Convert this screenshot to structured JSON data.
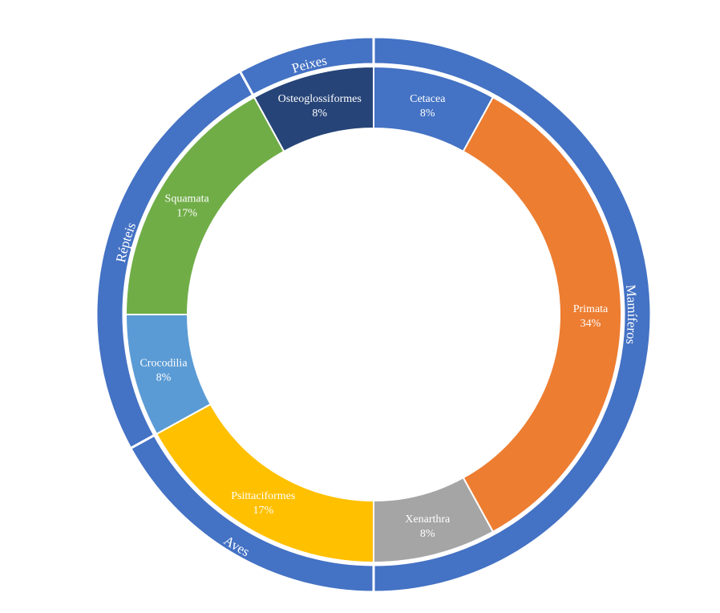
{
  "chart_data": {
    "type": "sunburst",
    "inner_ring": [
      {
        "name": "Cetacea",
        "value": 8,
        "label": "8%",
        "color": "#4472C4"
      },
      {
        "name": "Primata",
        "value": 34,
        "label": "34%",
        "color": "#ED7D31"
      },
      {
        "name": "Xenarthra",
        "value": 8,
        "label": "8%",
        "color": "#A5A5A5"
      },
      {
        "name": "Psittaciformes",
        "value": 17,
        "label": "17%",
        "color": "#FFC000"
      },
      {
        "name": "Crocodilia",
        "value": 8,
        "label": "8%",
        "color": "#5B9BD5"
      },
      {
        "name": "Squamata",
        "value": 17,
        "label": "17%",
        "color": "#70AD47"
      },
      {
        "name": "Osteoglossiformes",
        "value": 8,
        "label": "8%",
        "color": "#264478"
      }
    ],
    "outer_ring": [
      {
        "name": "Mamíferos",
        "value": 50,
        "color": "#4472C4"
      },
      {
        "name": "Aves",
        "value": 17,
        "color": "#4472C4"
      },
      {
        "name": "Répteis",
        "value": 25,
        "color": "#4472C4"
      },
      {
        "name": "Peixes",
        "value": 8,
        "color": "#4472C4"
      }
    ]
  }
}
